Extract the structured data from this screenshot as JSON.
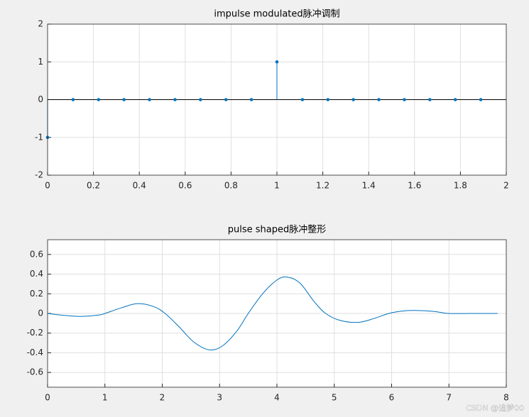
{
  "chart_data": [
    {
      "type": "stem",
      "title": "impulse modulated脉冲调制",
      "x": [
        0,
        0.1111,
        0.2222,
        0.3333,
        0.4444,
        0.5556,
        0.6667,
        0.7778,
        0.8889,
        1,
        1.1111,
        1.2222,
        1.3333,
        1.4444,
        1.5556,
        1.6667,
        1.7778,
        1.8889
      ],
      "values": [
        -1,
        0,
        0,
        0,
        0,
        0,
        0,
        0,
        0,
        1,
        0,
        0,
        0,
        0,
        0,
        0,
        0,
        0
      ],
      "color": "#0072bd",
      "xlim": [
        0,
        2
      ],
      "xticks": [
        0,
        0.2,
        0.4,
        0.6,
        0.8,
        1,
        1.2,
        1.4,
        1.6,
        1.8,
        2
      ],
      "ylim": [
        -2,
        2
      ],
      "yticks": [
        -2,
        -1,
        0,
        1,
        2
      ],
      "grid": true
    },
    {
      "type": "line",
      "title": "pulse shaped脉冲整形",
      "x": [
        0,
        0.3,
        0.6,
        0.9,
        1.0,
        1.3,
        1.57,
        1.85,
        2.05,
        2.3,
        2.55,
        2.82,
        3.05,
        3.3,
        3.5,
        3.75,
        4.0,
        4.18,
        4.4,
        4.65,
        4.85,
        5.1,
        5.42,
        5.7,
        5.95,
        6.2,
        6.45,
        6.75,
        7.0,
        7.4,
        7.85
      ],
      "values": [
        0,
        -0.02,
        -0.03,
        -0.015,
        0,
        0.06,
        0.1,
        0.07,
        0,
        -0.14,
        -0.29,
        -0.37,
        -0.33,
        -0.18,
        0,
        0.2,
        0.34,
        0.37,
        0.31,
        0.12,
        0,
        -0.07,
        -0.09,
        -0.05,
        0,
        0.025,
        0.03,
        0.02,
        0,
        0,
        0
      ],
      "color": "#0072bd",
      "xlim": [
        0,
        8
      ],
      "xticks": [
        0,
        1,
        2,
        3,
        4,
        5,
        6,
        7,
        8
      ],
      "ylim": [
        -0.75,
        0.75
      ],
      "yticks": [
        -0.6,
        -0.4,
        -0.2,
        0,
        0.2,
        0.4,
        0.6
      ],
      "grid": true
    }
  ],
  "watermark": "CSDN @追梦00"
}
